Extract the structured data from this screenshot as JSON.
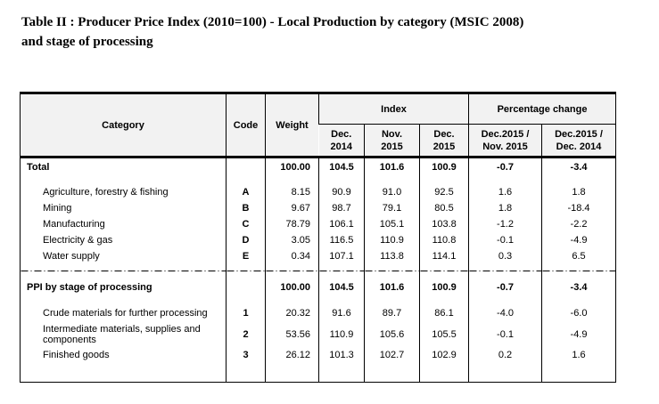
{
  "title": {
    "line1": "Table II : Producer Price Index (2010=100) - Local Production by category (MSIC 2008)",
    "line2": "and stage of processing"
  },
  "colors": {
    "header_bg": "#f2f2f2",
    "border": "#000000",
    "text": "#000000",
    "page_bg": "#ffffff"
  },
  "table": {
    "header": {
      "category": "Category",
      "code": "Code",
      "weight": "Weight",
      "index_group": "Index",
      "pct_group": "Percentage change",
      "sub": [
        {
          "line1": "Dec.",
          "line2": "2014"
        },
        {
          "line1": "Nov.",
          "line2": "2015"
        },
        {
          "line1": "Dec.",
          "line2": "2015"
        },
        {
          "line1": "Dec.2015 /",
          "line2": "Nov. 2015"
        },
        {
          "line1": "Dec.2015 /",
          "line2": "Dec. 2014"
        }
      ]
    },
    "rows": [
      {
        "label": "Total",
        "code": "",
        "weight": "100.00",
        "i1": "104.5",
        "i2": "101.6",
        "i3": "100.9",
        "p1": "-0.7",
        "p2": "-3.4"
      },
      {
        "label": "Agriculture, forestry & fishing",
        "code": "A",
        "weight": "8.15",
        "i1": "90.9",
        "i2": "91.0",
        "i3": "92.5",
        "p1": "1.6",
        "p2": "1.8"
      },
      {
        "label": "Mining",
        "code": "B",
        "weight": "9.67",
        "i1": "98.7",
        "i2": "79.1",
        "i3": "80.5",
        "p1": "1.8",
        "p2": "-18.4"
      },
      {
        "label": "Manufacturing",
        "code": "C",
        "weight": "78.79",
        "i1": "106.1",
        "i2": "105.1",
        "i3": "103.8",
        "p1": "-1.2",
        "p2": "-2.2"
      },
      {
        "label": "Electricity & gas",
        "code": "D",
        "weight": "3.05",
        "i1": "116.5",
        "i2": "110.9",
        "i3": "110.8",
        "p1": "-0.1",
        "p2": "-4.9"
      },
      {
        "label": "Water supply",
        "code": "E",
        "weight": "0.34",
        "i1": "107.1",
        "i2": "113.8",
        "i3": "114.1",
        "p1": "0.3",
        "p2": "6.5"
      },
      {
        "label": "PPI by stage of processing",
        "code": "",
        "weight": "100.00",
        "i1": "104.5",
        "i2": "101.6",
        "i3": "100.9",
        "p1": "-0.7",
        "p2": "-3.4"
      },
      {
        "label": "Crude materials for further processing",
        "code": "1",
        "weight": "20.32",
        "i1": "91.6",
        "i2": "89.7",
        "i3": "86.1",
        "p1": "-4.0",
        "p2": "-6.0"
      },
      {
        "label": "Intermediate materials, supplies and components",
        "code": "2",
        "weight": "53.56",
        "i1": "110.9",
        "i2": "105.6",
        "i3": "105.5",
        "p1": "-0.1",
        "p2": "-4.9"
      },
      {
        "label": "Finished goods",
        "code": "3",
        "weight": "26.12",
        "i1": "101.3",
        "i2": "102.7",
        "i3": "102.9",
        "p1": "0.2",
        "p2": "1.6"
      }
    ]
  }
}
